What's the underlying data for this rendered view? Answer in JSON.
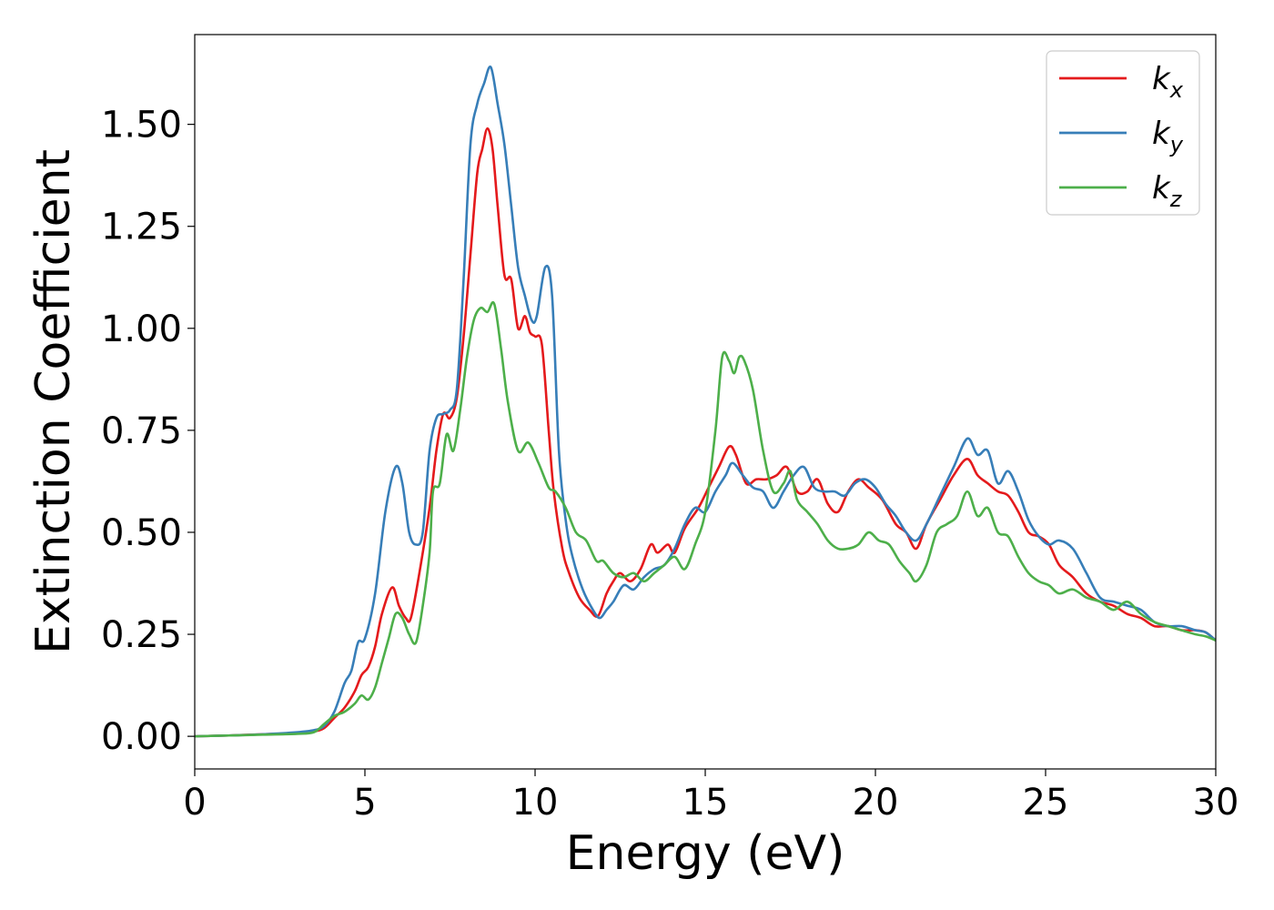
{
  "chart_data": {
    "type": "line",
    "title": "",
    "xlabel": "Energy (eV)",
    "ylabel": "Extinction Coefficient",
    "xlim": [
      0,
      30
    ],
    "ylim": [
      -0.08,
      1.72
    ],
    "x_ticks": [
      0,
      5,
      10,
      15,
      20,
      25,
      30
    ],
    "x_tick_labels": [
      "0",
      "5",
      "10",
      "15",
      "20",
      "25",
      "30"
    ],
    "y_ticks": [
      0.0,
      0.25,
      0.5,
      0.75,
      1.0,
      1.25,
      1.5
    ],
    "y_tick_labels": [
      "0.00",
      "0.25",
      "0.50",
      "0.75",
      "1.00",
      "1.25",
      "1.50"
    ],
    "grid": false,
    "legend_position": "top-right",
    "series": [
      {
        "name": "k",
        "subscript": "x",
        "color": "#e41a1c",
        "x": [
          0,
          1,
          2,
          3,
          3.5,
          3.8,
          4.1,
          4.4,
          4.7,
          4.9,
          5.1,
          5.3,
          5.5,
          5.8,
          6.0,
          6.2,
          6.35,
          6.6,
          6.9,
          7.1,
          7.3,
          7.5,
          7.7,
          7.9,
          8.1,
          8.3,
          8.45,
          8.6,
          8.75,
          8.9,
          9.1,
          9.3,
          9.5,
          9.7,
          9.85,
          10.0,
          10.2,
          10.4,
          10.55,
          10.8,
          11.0,
          11.3,
          11.6,
          11.85,
          12.1,
          12.3,
          12.5,
          12.8,
          13.1,
          13.4,
          13.6,
          13.9,
          14.1,
          14.4,
          14.8,
          15.1,
          15.4,
          15.7,
          15.9,
          16.2,
          16.5,
          16.8,
          17.1,
          17.4,
          17.7,
          18.0,
          18.3,
          18.6,
          18.9,
          19.2,
          19.5,
          19.8,
          20.2,
          20.6,
          20.9,
          21.2,
          21.5,
          21.9,
          22.3,
          22.7,
          23.0,
          23.3,
          23.6,
          23.9,
          24.2,
          24.5,
          24.8,
          25.1,
          25.4,
          25.8,
          26.2,
          26.6,
          27.0,
          27.4,
          27.8,
          28.2,
          28.6,
          29.0,
          29.4,
          29.7,
          30.0
        ],
        "y": [
          0.0,
          0.002,
          0.005,
          0.008,
          0.012,
          0.02,
          0.045,
          0.07,
          0.11,
          0.15,
          0.17,
          0.22,
          0.3,
          0.365,
          0.32,
          0.29,
          0.29,
          0.4,
          0.56,
          0.7,
          0.79,
          0.78,
          0.83,
          0.98,
          1.18,
          1.38,
          1.44,
          1.49,
          1.44,
          1.3,
          1.13,
          1.12,
          1.0,
          1.03,
          0.99,
          0.98,
          0.96,
          0.75,
          0.6,
          0.46,
          0.4,
          0.34,
          0.31,
          0.295,
          0.35,
          0.38,
          0.4,
          0.38,
          0.41,
          0.47,
          0.45,
          0.47,
          0.45,
          0.51,
          0.56,
          0.61,
          0.66,
          0.71,
          0.69,
          0.62,
          0.63,
          0.63,
          0.64,
          0.66,
          0.6,
          0.6,
          0.63,
          0.57,
          0.55,
          0.6,
          0.63,
          0.61,
          0.58,
          0.52,
          0.5,
          0.46,
          0.52,
          0.58,
          0.64,
          0.68,
          0.64,
          0.62,
          0.6,
          0.59,
          0.55,
          0.5,
          0.49,
          0.47,
          0.42,
          0.39,
          0.35,
          0.33,
          0.32,
          0.3,
          0.29,
          0.27,
          0.27,
          0.26,
          0.26,
          0.255,
          0.235
        ]
      },
      {
        "name": "k",
        "subscript": "y",
        "color": "#377eb8",
        "x": [
          0,
          1,
          2,
          3,
          3.5,
          3.8,
          4.1,
          4.4,
          4.6,
          4.8,
          5.0,
          5.3,
          5.6,
          5.9,
          6.1,
          6.3,
          6.5,
          6.7,
          6.9,
          7.1,
          7.3,
          7.5,
          7.7,
          7.9,
          8.1,
          8.3,
          8.5,
          8.7,
          8.9,
          9.1,
          9.3,
          9.5,
          9.7,
          9.9,
          10.05,
          10.3,
          10.5,
          10.7,
          10.9,
          11.1,
          11.4,
          11.7,
          11.9,
          12.1,
          12.3,
          12.6,
          12.9,
          13.2,
          13.5,
          13.8,
          14.1,
          14.4,
          14.7,
          15.0,
          15.3,
          15.6,
          15.8,
          16.1,
          16.4,
          16.7,
          17.0,
          17.3,
          17.6,
          17.9,
          18.2,
          18.5,
          18.8,
          19.1,
          19.4,
          19.7,
          20.0,
          20.3,
          20.6,
          20.9,
          21.2,
          21.5,
          21.9,
          22.3,
          22.7,
          23.0,
          23.3,
          23.6,
          23.9,
          24.2,
          24.5,
          24.8,
          25.1,
          25.4,
          25.8,
          26.2,
          26.6,
          27.0,
          27.4,
          27.8,
          28.2,
          28.6,
          29.0,
          29.4,
          29.7,
          30.0
        ],
        "y": [
          0.0,
          0.002,
          0.005,
          0.01,
          0.015,
          0.025,
          0.06,
          0.13,
          0.16,
          0.23,
          0.24,
          0.35,
          0.55,
          0.66,
          0.62,
          0.5,
          0.47,
          0.5,
          0.7,
          0.78,
          0.79,
          0.8,
          0.85,
          1.12,
          1.45,
          1.55,
          1.6,
          1.64,
          1.55,
          1.45,
          1.3,
          1.15,
          1.08,
          1.02,
          1.03,
          1.15,
          1.08,
          0.7,
          0.53,
          0.44,
          0.36,
          0.31,
          0.29,
          0.31,
          0.33,
          0.37,
          0.36,
          0.39,
          0.41,
          0.42,
          0.46,
          0.52,
          0.56,
          0.55,
          0.6,
          0.64,
          0.67,
          0.64,
          0.61,
          0.6,
          0.56,
          0.6,
          0.64,
          0.66,
          0.61,
          0.6,
          0.6,
          0.59,
          0.62,
          0.63,
          0.61,
          0.57,
          0.54,
          0.5,
          0.48,
          0.52,
          0.59,
          0.66,
          0.73,
          0.69,
          0.7,
          0.62,
          0.65,
          0.6,
          0.53,
          0.49,
          0.47,
          0.48,
          0.46,
          0.4,
          0.34,
          0.33,
          0.32,
          0.31,
          0.28,
          0.27,
          0.27,
          0.26,
          0.255,
          0.235
        ]
      },
      {
        "name": "k",
        "subscript": "z",
        "color": "#4daf4a",
        "x": [
          0,
          1,
          2,
          3,
          3.5,
          3.8,
          4.1,
          4.4,
          4.7,
          4.9,
          5.1,
          5.3,
          5.5,
          5.7,
          5.9,
          6.1,
          6.3,
          6.5,
          6.7,
          6.9,
          7.0,
          7.2,
          7.4,
          7.6,
          7.8,
          8.0,
          8.2,
          8.4,
          8.6,
          8.8,
          9.0,
          9.2,
          9.5,
          9.8,
          10.1,
          10.4,
          10.6,
          10.9,
          11.2,
          11.5,
          11.8,
          12.0,
          12.3,
          12.6,
          12.9,
          13.2,
          13.5,
          13.8,
          14.1,
          14.4,
          14.7,
          15.0,
          15.3,
          15.5,
          15.7,
          15.85,
          16.0,
          16.15,
          16.4,
          16.7,
          17.0,
          17.3,
          17.5,
          17.7,
          18.0,
          18.3,
          18.6,
          18.9,
          19.2,
          19.5,
          19.8,
          20.1,
          20.4,
          20.7,
          21.0,
          21.2,
          21.5,
          21.8,
          22.1,
          22.4,
          22.7,
          23.0,
          23.3,
          23.6,
          23.9,
          24.2,
          24.5,
          24.8,
          25.1,
          25.4,
          25.8,
          26.2,
          26.6,
          27.0,
          27.4,
          27.8,
          28.2,
          28.6,
          29.0,
          29.4,
          29.7,
          30.0
        ],
        "y": [
          0.0,
          0.002,
          0.004,
          0.006,
          0.01,
          0.03,
          0.05,
          0.06,
          0.08,
          0.1,
          0.09,
          0.12,
          0.18,
          0.24,
          0.3,
          0.29,
          0.25,
          0.23,
          0.32,
          0.45,
          0.6,
          0.62,
          0.74,
          0.7,
          0.8,
          0.93,
          1.02,
          1.05,
          1.04,
          1.06,
          0.95,
          0.82,
          0.7,
          0.72,
          0.67,
          0.61,
          0.6,
          0.56,
          0.5,
          0.48,
          0.43,
          0.43,
          0.4,
          0.39,
          0.4,
          0.38,
          0.4,
          0.42,
          0.44,
          0.41,
          0.47,
          0.55,
          0.75,
          0.93,
          0.92,
          0.89,
          0.93,
          0.92,
          0.85,
          0.7,
          0.6,
          0.62,
          0.65,
          0.58,
          0.55,
          0.52,
          0.48,
          0.46,
          0.46,
          0.47,
          0.5,
          0.48,
          0.47,
          0.43,
          0.4,
          0.38,
          0.42,
          0.5,
          0.52,
          0.54,
          0.6,
          0.54,
          0.56,
          0.5,
          0.49,
          0.44,
          0.4,
          0.38,
          0.37,
          0.35,
          0.36,
          0.34,
          0.33,
          0.31,
          0.33,
          0.3,
          0.28,
          0.27,
          0.26,
          0.25,
          0.245,
          0.235
        ]
      }
    ]
  }
}
